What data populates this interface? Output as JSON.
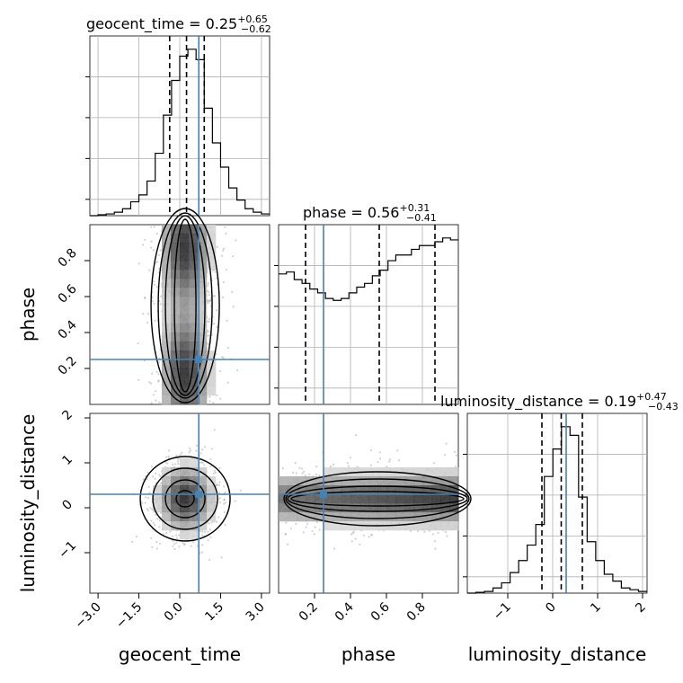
{
  "chart_data": {
    "type": "corner",
    "parameters": [
      {
        "name": "geocent_time",
        "xlabel": "geocent_time",
        "range": [
          -3.3,
          3.3
        ],
        "ticks": [
          -3.0,
          -1.5,
          0.0,
          1.5,
          3.0
        ],
        "tick_labels": [
          "−3.0",
          "−1.5",
          "0.0",
          "1.5",
          "3.0"
        ],
        "truth": 0.7,
        "quantiles": [
          -0.37,
          0.25,
          0.9
        ],
        "title": {
          "text": "geocent_time = 0.25",
          "plus": "+0.65",
          "minus": "−0.62"
        }
      },
      {
        "name": "phase",
        "xlabel": "phase",
        "ylabel": "phase",
        "range": [
          0.0,
          1.0
        ],
        "ticks": [
          0.2,
          0.4,
          0.6,
          0.8
        ],
        "tick_labels": [
          "0.2",
          "0.4",
          "0.6",
          "0.8"
        ],
        "truth": 0.25,
        "quantiles": [
          0.15,
          0.56,
          0.87
        ],
        "title": {
          "text": "phase = 0.56",
          "plus": "+0.31",
          "minus": "−0.41"
        }
      },
      {
        "name": "luminosity_distance",
        "xlabel": "luminosity_distance",
        "ylabel": "luminosity_distance",
        "range": [
          -1.9,
          2.1
        ],
        "ticks": [
          -1,
          0,
          1,
          2
        ],
        "tick_labels": [
          "−1",
          "0",
          "1",
          "2"
        ],
        "truth": 0.3,
        "quantiles": [
          -0.24,
          0.19,
          0.66
        ],
        "title": {
          "text": "luminosity_distance = 0.19",
          "plus": "+0.47",
          "minus": "−0.43"
        }
      }
    ],
    "histograms": {
      "geocent_time": [
        0,
        0.5,
        1,
        2,
        4,
        8,
        12,
        20,
        36,
        58,
        78,
        92,
        96,
        90,
        62,
        42,
        28,
        16,
        9,
        4,
        2,
        1
      ],
      "phase": [
        69,
        70,
        66,
        64,
        61,
        59,
        56,
        55,
        56,
        59,
        62,
        64,
        68,
        71,
        76,
        79,
        79,
        82,
        84,
        84,
        86,
        88,
        87
      ],
      "luminosity_distance": [
        0,
        0.5,
        1,
        3,
        6,
        12,
        19,
        28,
        40,
        68,
        84,
        97,
        92,
        56,
        30,
        19,
        11,
        7,
        3,
        2,
        1
      ]
    },
    "grid": true,
    "truth_color": "#4682b4",
    "contour_color": "#000000"
  }
}
